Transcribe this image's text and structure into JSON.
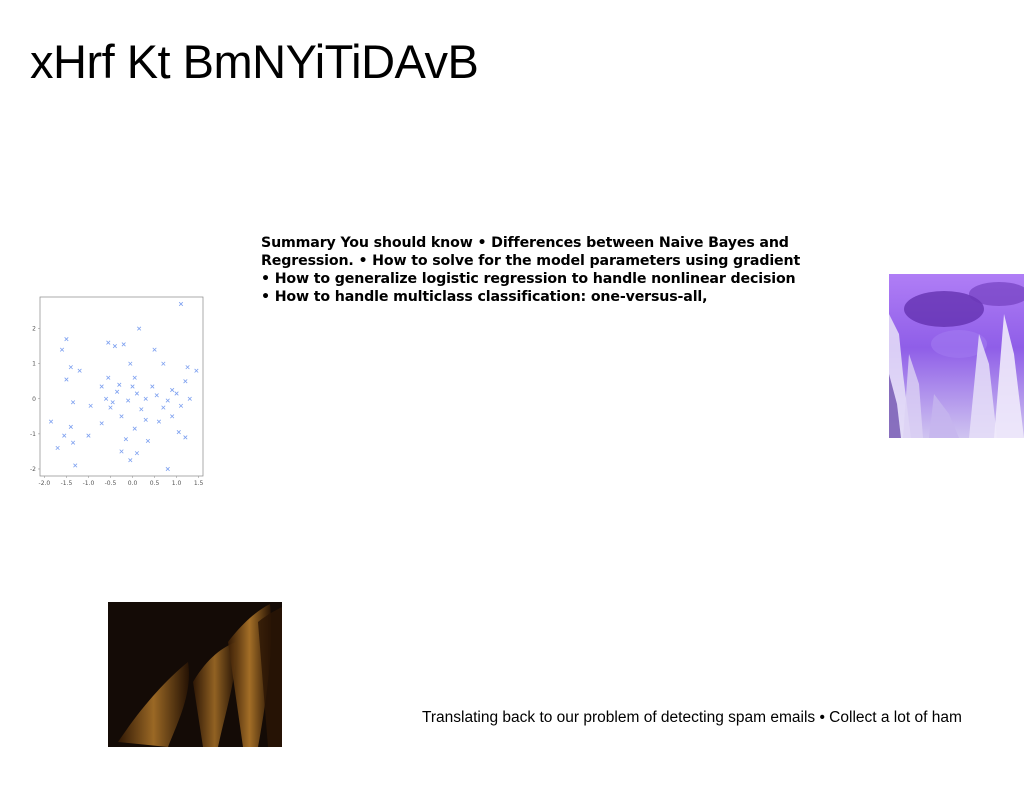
{
  "slide": {
    "title": "xHrf Kt BmNYiTiDAvB",
    "summary_lines": [
      "Summary You should know • Differences between Naive Bayes and",
      "Regression. • How to solve for the model parameters using gradient",
      "• How to generalize logistic regression to handle nonlinear decision",
      "• How to handle multiclass classification: one-versus-all,"
    ],
    "bottom_text": "Translating back to our problem of detecting spam emails • Collect a lot of ham"
  },
  "chart_data": {
    "type": "scatter",
    "title": "",
    "xlabel": "",
    "ylabel": "",
    "xlim": [
      -2.1,
      1.6
    ],
    "ylim": [
      -2.2,
      2.9
    ],
    "xticks": [
      "-2.0",
      "-1.5",
      "-1.0",
      "-0.5",
      "0.0",
      "0.5",
      "1.0",
      "1.5"
    ],
    "yticks": [
      "2",
      "1",
      "0",
      "-1",
      "-2"
    ],
    "grid": false,
    "marker": "x",
    "color": "#7da0f0",
    "points": [
      [
        1.1,
        2.7
      ],
      [
        0.15,
        2.0
      ],
      [
        -1.5,
        1.7
      ],
      [
        -1.6,
        1.4
      ],
      [
        -0.55,
        1.6
      ],
      [
        -0.4,
        1.5
      ],
      [
        -0.2,
        1.55
      ],
      [
        0.5,
        1.4
      ],
      [
        -0.05,
        1.0
      ],
      [
        0.7,
        1.0
      ],
      [
        -1.4,
        0.9
      ],
      [
        -1.2,
        0.8
      ],
      [
        1.25,
        0.9
      ],
      [
        1.45,
        0.8
      ],
      [
        -1.5,
        0.55
      ],
      [
        -0.7,
        0.35
      ],
      [
        -0.3,
        0.4
      ],
      [
        0.0,
        0.35
      ],
      [
        0.45,
        0.35
      ],
      [
        0.9,
        0.25
      ],
      [
        1.2,
        0.5
      ],
      [
        -0.35,
        0.2
      ],
      [
        0.1,
        0.15
      ],
      [
        0.55,
        0.1
      ],
      [
        1.0,
        0.15
      ],
      [
        -0.6,
        0.0
      ],
      [
        -0.1,
        -0.05
      ],
      [
        0.3,
        0.0
      ],
      [
        0.8,
        -0.05
      ],
      [
        1.3,
        0.0
      ],
      [
        -1.35,
        -0.1
      ],
      [
        -0.95,
        -0.2
      ],
      [
        -0.5,
        -0.25
      ],
      [
        0.2,
        -0.3
      ],
      [
        0.7,
        -0.25
      ],
      [
        1.1,
        -0.2
      ],
      [
        -0.25,
        -0.5
      ],
      [
        0.3,
        -0.6
      ],
      [
        0.6,
        -0.65
      ],
      [
        -1.85,
        -0.65
      ],
      [
        -1.4,
        -0.8
      ],
      [
        -0.7,
        -0.7
      ],
      [
        0.05,
        -0.85
      ],
      [
        1.05,
        -0.95
      ],
      [
        -1.55,
        -1.05
      ],
      [
        -1.0,
        -1.05
      ],
      [
        -0.15,
        -1.15
      ],
      [
        0.35,
        -1.2
      ],
      [
        1.2,
        -1.1
      ],
      [
        -1.35,
        -1.25
      ],
      [
        -1.7,
        -1.4
      ],
      [
        -0.25,
        -1.5
      ],
      [
        0.1,
        -1.55
      ],
      [
        -0.05,
        -1.75
      ],
      [
        -1.3,
        -1.9
      ],
      [
        0.8,
        -2.0
      ],
      [
        -0.45,
        -0.1
      ],
      [
        0.05,
        0.6
      ],
      [
        -0.55,
        0.6
      ],
      [
        0.9,
        -0.5
      ]
    ]
  },
  "images": {
    "purple": "purple-abstract-image",
    "dark": "dark-amber-abstract-image"
  }
}
